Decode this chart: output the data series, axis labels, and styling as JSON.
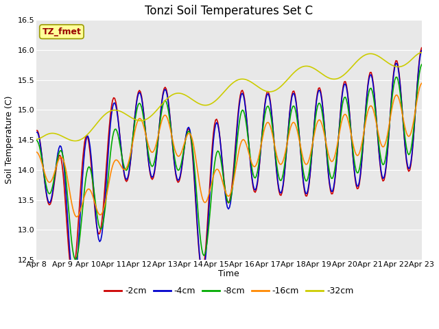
{
  "title": "Tonzi Soil Temperatures Set C",
  "xlabel": "Time",
  "ylabel": "Soil Temperature (C)",
  "ylim": [
    12.5,
    16.5
  ],
  "x_labels": [
    "Apr 8",
    "Apr 9",
    "Apr 10",
    "Apr 11",
    "Apr 12",
    "Apr 13",
    "Apr 14",
    "Apr 15",
    "Apr 16",
    "Apr 17",
    "Apr 18",
    "Apr 19",
    "Apr 20",
    "Apr 21",
    "Apr 22",
    "Apr 23"
  ],
  "series_colors": [
    "#cc0000",
    "#0000cc",
    "#00aa00",
    "#ff8800",
    "#cccc00"
  ],
  "series_labels": [
    "-2cm",
    "-4cm",
    "-8cm",
    "-16cm",
    "-32cm"
  ],
  "legend_label": "TZ_fmet",
  "legend_bg": "#ffff99",
  "legend_border": "#999900",
  "legend_text_color": "#990000",
  "background_color": "#e8e8e8",
  "title_fontsize": 12,
  "label_fontsize": 9,
  "tick_fontsize": 8,
  "line_width": 1.2
}
